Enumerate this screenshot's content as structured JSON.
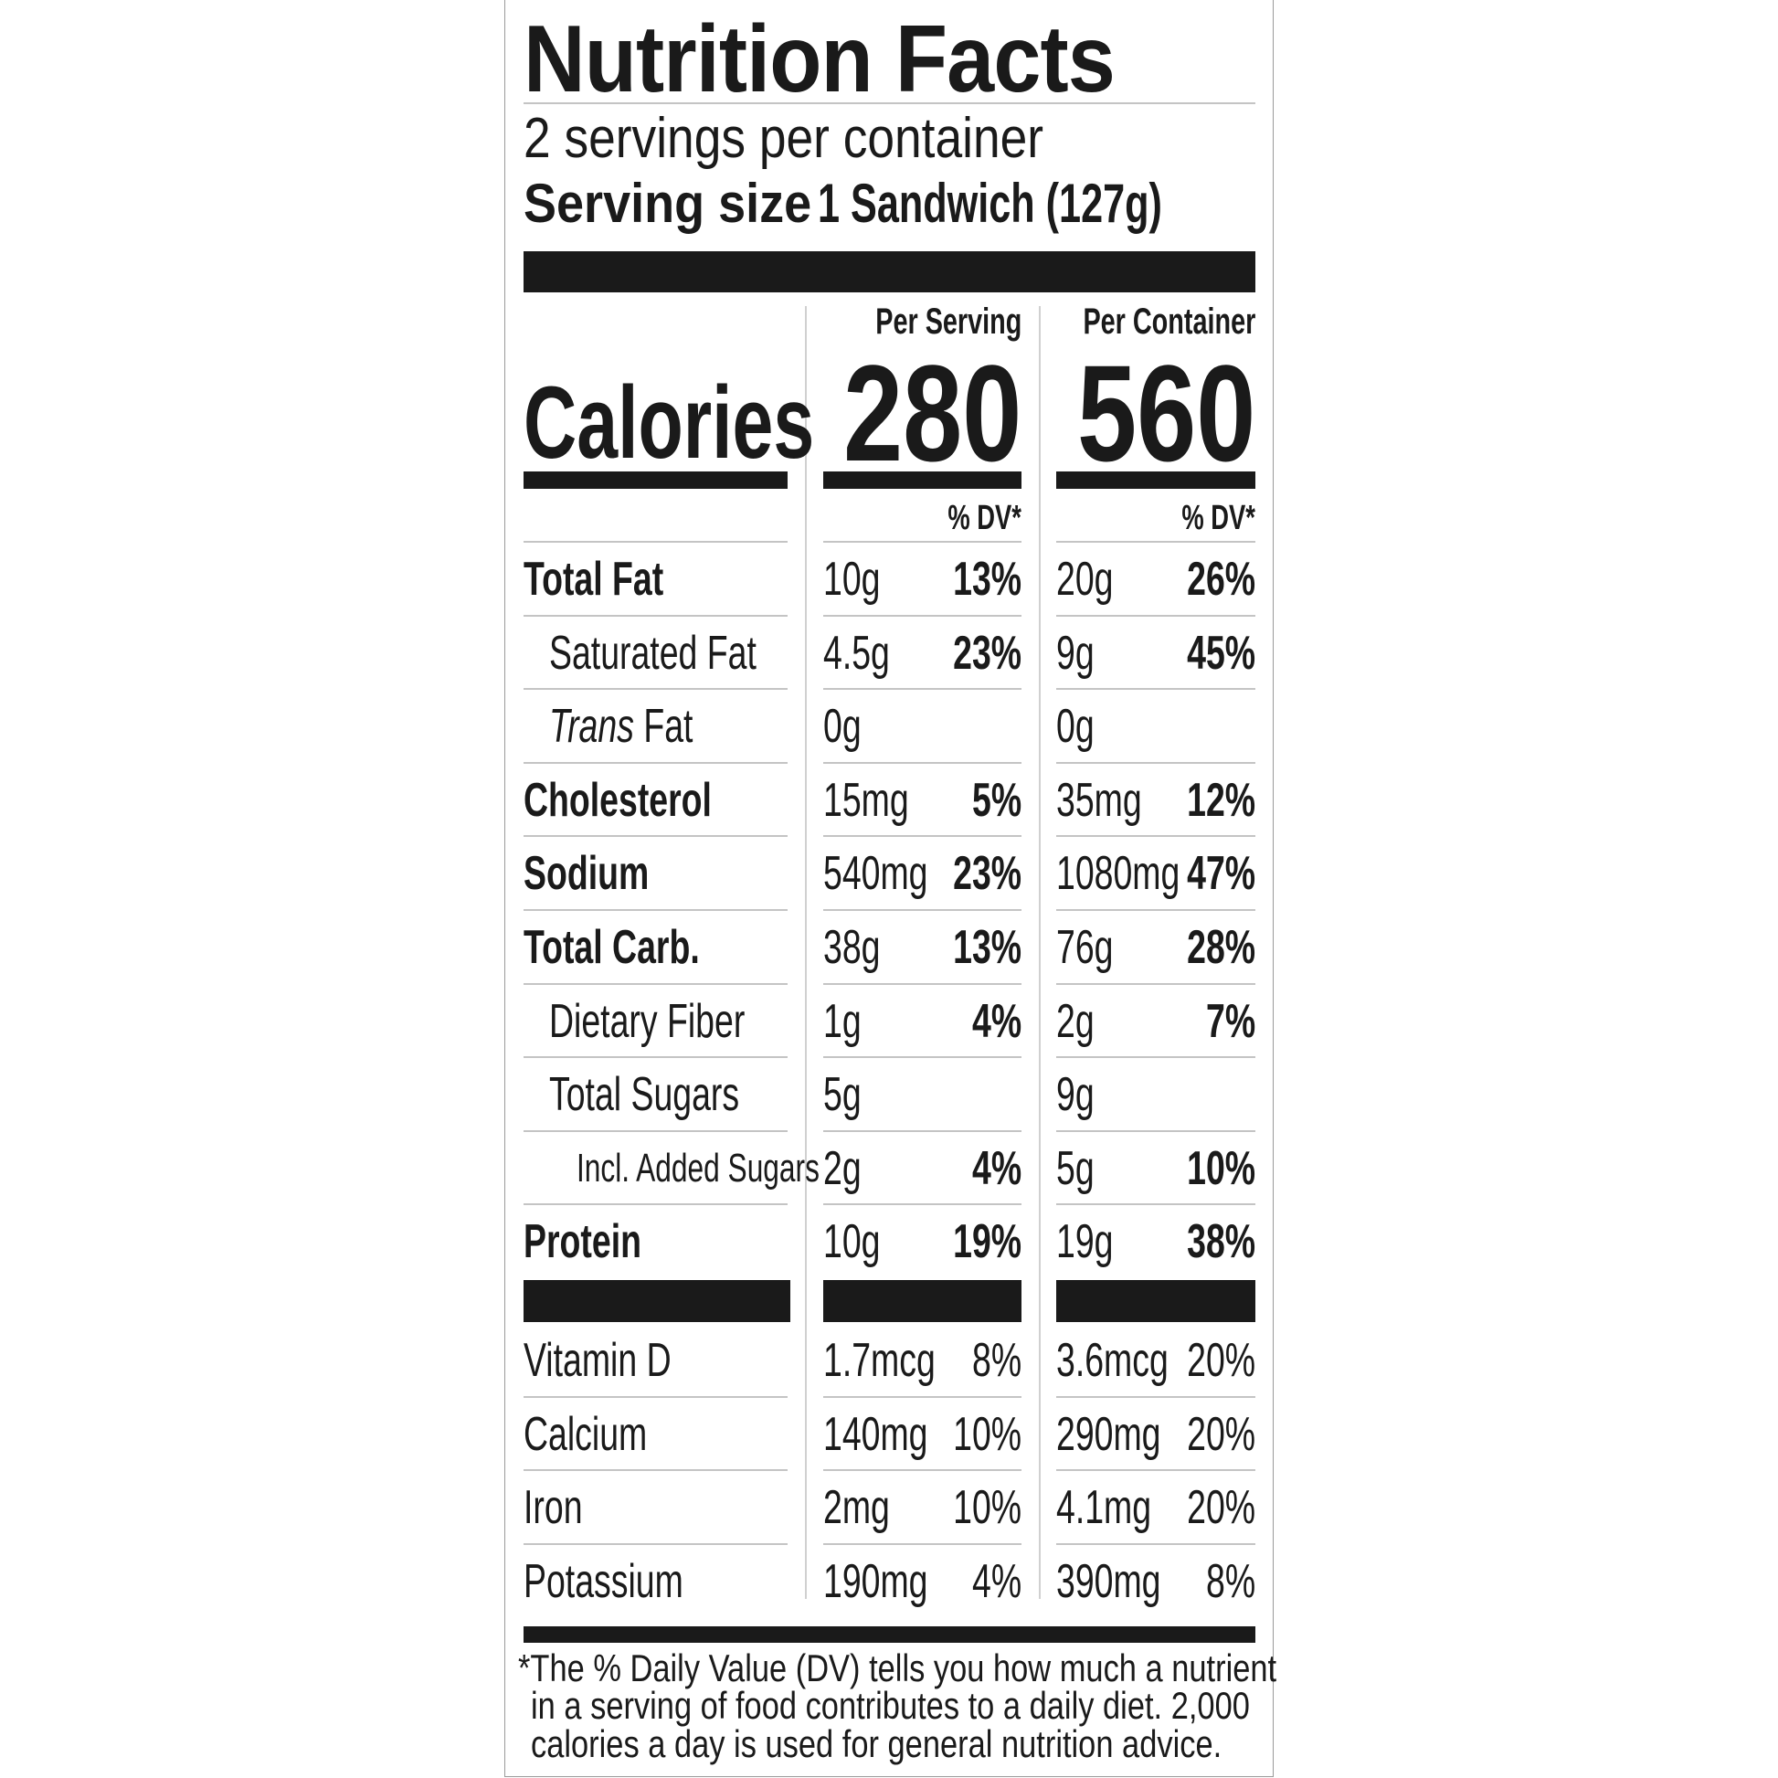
{
  "title": "Nutrition Facts",
  "servings_per_container": "2 servings per container",
  "serving_size_label": "Serving size",
  "serving_size_value": "1 Sandwich (127g)",
  "columns": {
    "per_serving": "Per Serving",
    "per_container": "Per Container",
    "dv_label": "% DV*"
  },
  "calories": {
    "label": "Calories",
    "per_serving": "280",
    "per_container": "560"
  },
  "nutrients": [
    {
      "name": "Total Fat",
      "bold": true,
      "indent": 0,
      "serving_amount": "10g",
      "serving_dv": "13%",
      "container_amount": "20g",
      "container_dv": "26%"
    },
    {
      "name": "Saturated Fat",
      "bold": false,
      "indent": 1,
      "serving_amount": "4.5g",
      "serving_dv": "23%",
      "container_amount": "9g",
      "container_dv": "45%",
      "dv_bold": true
    },
    {
      "name": "Fat",
      "prefix_italic": "Trans",
      "bold": false,
      "indent": 1,
      "serving_amount": "0g",
      "serving_dv": "",
      "container_amount": "0g",
      "container_dv": ""
    },
    {
      "name": "Cholesterol",
      "bold": true,
      "indent": 0,
      "serving_amount": "15mg",
      "serving_dv": "5%",
      "container_amount": "35mg",
      "container_dv": "12%"
    },
    {
      "name": "Sodium",
      "bold": true,
      "indent": 0,
      "serving_amount": "540mg",
      "serving_dv": "23%",
      "container_amount": "1080mg",
      "container_dv": "47%"
    },
    {
      "name": "Total Carb.",
      "bold": true,
      "indent": 0,
      "serving_amount": "38g",
      "serving_dv": "13%",
      "container_amount": "76g",
      "container_dv": "28%"
    },
    {
      "name": "Dietary Fiber",
      "bold": false,
      "indent": 1,
      "serving_amount": "1g",
      "serving_dv": "4%",
      "container_amount": "2g",
      "container_dv": "7%",
      "dv_bold": true
    },
    {
      "name": "Total Sugars",
      "bold": false,
      "indent": 1,
      "serving_amount": "5g",
      "serving_dv": "",
      "container_amount": "9g",
      "container_dv": ""
    },
    {
      "name": "Incl. Added Sugars",
      "bold": false,
      "indent": 2,
      "serving_amount": "2g",
      "serving_dv": "4%",
      "container_amount": "5g",
      "container_dv": "10%",
      "dv_bold": true
    },
    {
      "name": "Protein",
      "bold": true,
      "indent": 0,
      "serving_amount": "10g",
      "serving_dv": "19%",
      "container_amount": "19g",
      "container_dv": "38%"
    }
  ],
  "vitamins": [
    {
      "name": "Vitamin D",
      "serving_amount": "1.7mcg",
      "serving_dv": "8%",
      "container_amount": "3.6mcg",
      "container_dv": "20%"
    },
    {
      "name": "Calcium",
      "serving_amount": "140mg",
      "serving_dv": "10%",
      "container_amount": "290mg",
      "container_dv": "20%"
    },
    {
      "name": "Iron",
      "serving_amount": "2mg",
      "serving_dv": "10%",
      "container_amount": "4.1mg",
      "container_dv": "20%"
    },
    {
      "name": "Potassium",
      "serving_amount": "190mg",
      "serving_dv": "4%",
      "container_amount": "390mg",
      "container_dv": "8%"
    }
  ],
  "footnote": [
    "*The % Daily Value (DV) tells you how much a nutrient",
    "in a serving of food contributes to a daily diet. 2,000",
    "calories a day is used for general nutrition advice."
  ]
}
